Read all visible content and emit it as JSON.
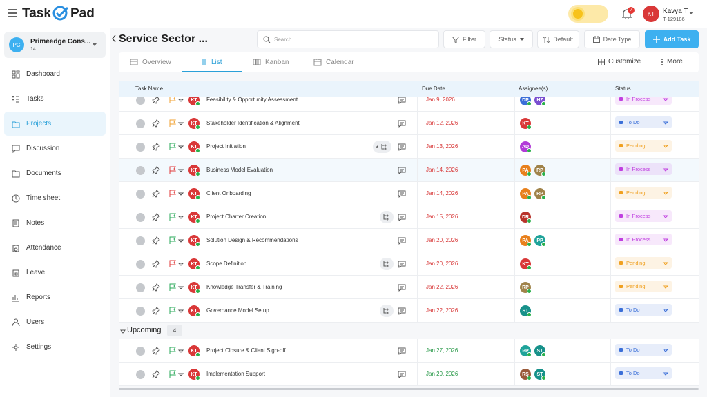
{
  "header": {
    "logo_left": "Task",
    "logo_right": "Pad",
    "notifications": 7,
    "user": {
      "initials": "KT",
      "name": "Kavya T",
      "id": "T-129186"
    }
  },
  "sidebar": {
    "workspace": {
      "initials": "PC",
      "name": "Primeedge Cons...",
      "count": 14
    },
    "nav": [
      {
        "label": "Dashboard"
      },
      {
        "label": "Tasks"
      },
      {
        "label": "Projects",
        "active": true
      },
      {
        "label": "Discussion"
      },
      {
        "label": "Documents"
      },
      {
        "label": "Time sheet"
      },
      {
        "label": "Notes"
      },
      {
        "label": "Attendance"
      },
      {
        "label": "Leave"
      },
      {
        "label": "Reports"
      },
      {
        "label": "Users"
      },
      {
        "label": "Settings"
      }
    ]
  },
  "toolbar": {
    "title": "Service Sector ...",
    "search_placeholder": "Search...",
    "filter": "Filter",
    "status": "Status",
    "sort": "Default",
    "date_type": "Date Type",
    "add_task": "Add Task"
  },
  "tabs": [
    {
      "label": "Overview"
    },
    {
      "label": "List",
      "active": true
    },
    {
      "label": "Kanban"
    },
    {
      "label": "Calendar"
    }
  ],
  "tab_actions": {
    "customize": "Customize",
    "more": "More"
  },
  "table": {
    "columns": [
      "Task Name",
      "Due Date",
      "Assignee(s)",
      "Status"
    ],
    "groups": [
      {
        "rows": [
          {
            "owner": "KT",
            "flag": "#f0a030",
            "name": "Feasibility & Opportunity Assessment",
            "due": "Jan 9, 2026",
            "due_color": "#d83a3a",
            "assignees": [
              {
                "initials": "DP",
                "color": "#3b6fd8"
              },
              {
                "initials": "HZ",
                "color": "#7a4fd0"
              }
            ],
            "status": "In Process",
            "status_color": "#c040e0"
          },
          {
            "owner": "KT",
            "flag": "#f0a030",
            "name": "Stakeholder Identification & Alignment",
            "due": "Jan 12, 2026",
            "due_color": "#d83a3a",
            "assignees": [
              {
                "initials": "KT",
                "color": "#d93838"
              }
            ],
            "status": "To Do",
            "status_color": "#3b6fd8"
          },
          {
            "owner": "KT",
            "flag": "#2aa85a",
            "name": "Project Initiation",
            "subtasks": 3,
            "due": "Jan 13, 2026",
            "due_color": "#d83a3a",
            "assignees": [
              {
                "initials": "AD",
                "color": "#b23cd8"
              }
            ],
            "status": "Pending",
            "status_color": "#f0a020"
          },
          {
            "owner": "KT",
            "flag": "#e03a3a",
            "name": "Business Model Evaluation",
            "highlight": true,
            "due": "Jan 14, 2026",
            "due_color": "#d83a3a",
            "assignees": [
              {
                "initials": "PA",
                "color": "#e8801c"
              },
              {
                "initials": "RP",
                "color": "#a0834a"
              }
            ],
            "status": "In Process",
            "status_color": "#c040e0"
          },
          {
            "owner": "KT",
            "flag": "#e03a3a",
            "name": "Client Onboarding",
            "due": "Jan 14, 2026",
            "due_color": "#d83a3a",
            "assignees": [
              {
                "initials": "PA",
                "color": "#e8801c"
              },
              {
                "initials": "RP",
                "color": "#a0834a"
              }
            ],
            "status": "Pending",
            "status_color": "#f0a020"
          },
          {
            "owner": "KT",
            "flag": "#2aa85a",
            "name": "Project Charter Creation",
            "has_subtasks": true,
            "due": "Jan 15, 2026",
            "due_color": "#d83a3a",
            "assignees": [
              {
                "initials": "DR",
                "color": "#b8342c"
              }
            ],
            "status": "In Process",
            "status_color": "#c040e0"
          },
          {
            "owner": "KT",
            "flag": "#2aa85a",
            "name": "Solution Design & Recommendations",
            "due": "Jan 20, 2026",
            "due_color": "#d83a3a",
            "assignees": [
              {
                "initials": "PA",
                "color": "#e8801c"
              },
              {
                "initials": "PP",
                "color": "#1fa39a"
              }
            ],
            "status": "In Process",
            "status_color": "#c040e0"
          },
          {
            "owner": "KT",
            "flag": "#e03a3a",
            "name": "Scope Definition",
            "has_subtasks": true,
            "due": "Jan 20, 2026",
            "due_color": "#d83a3a",
            "assignees": [
              {
                "initials": "KT",
                "color": "#d93838"
              }
            ],
            "status": "Pending",
            "status_color": "#f0a020"
          },
          {
            "owner": "KT",
            "flag": "#2aa85a",
            "name": "Knowledge Transfer & Training",
            "due": "Jan 22, 2026",
            "due_color": "#d83a3a",
            "assignees": [
              {
                "initials": "RP",
                "color": "#a0834a"
              }
            ],
            "status": "Pending",
            "status_color": "#f0a020"
          },
          {
            "owner": "KT",
            "flag": "#2aa85a",
            "name": "Governance Model Setup",
            "has_subtasks": true,
            "due": "Jan 22, 2026",
            "due_color": "#d83a3a",
            "assignees": [
              {
                "initials": "ST",
                "color": "#17918a"
              }
            ],
            "status": "To Do",
            "status_color": "#3b6fd8"
          }
        ]
      },
      {
        "name": "Upcoming",
        "count": 4,
        "rows": [
          {
            "owner": "KT",
            "flag": "#2aa85a",
            "name": "Project Closure & Client Sign-off",
            "due": "Jan 27, 2026",
            "due_color": "#2a9a4a",
            "assignees": [
              {
                "initials": "PP",
                "color": "#1fa39a"
              },
              {
                "initials": "ST",
                "color": "#17918a"
              }
            ],
            "status": "To Do",
            "status_color": "#3b6fd8"
          },
          {
            "owner": "KT",
            "flag": "#2aa85a",
            "name": "Implementation Support",
            "due": "Jan 29, 2026",
            "due_color": "#2a9a4a",
            "assignees": [
              {
                "initials": "RS",
                "color": "#9a5a3a"
              },
              {
                "initials": "ST",
                "color": "#17918a"
              }
            ],
            "status": "To Do",
            "status_color": "#3b6fd8"
          }
        ]
      }
    ]
  }
}
